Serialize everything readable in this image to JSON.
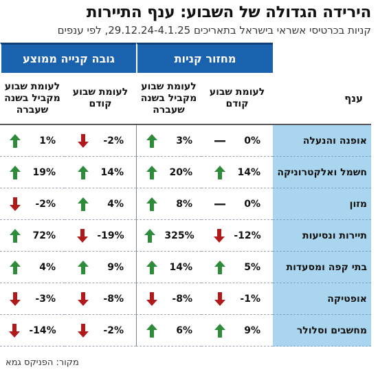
{
  "title": "הירידה הגדולה של השבוע: ענף התיירות",
  "subtitle": "קניות בכרטיסי אשראי בישראל בתאריכים 29.12.24-4.1.25, לפי ענפים",
  "groups": {
    "turnover": "מחזור קניות",
    "avg": "גובה קנייה ממוצע"
  },
  "columns": {
    "category": "ענף",
    "prev_week": "לעומת שבוע קודם",
    "last_year": "לעומת שבוע מקביל בשנה שעברה"
  },
  "colors": {
    "up": "#2e8b3a",
    "down": "#b11a1a",
    "header": "#1b62ae",
    "category_bg": "#a9d6ee"
  },
  "rows": [
    {
      "name": "אופנה והנעלה",
      "turnover_prev": "0%",
      "turnover_prev_dir": "flat",
      "turnover_year": "3%",
      "turnover_year_dir": "up",
      "avg_prev": "-2%",
      "avg_prev_dir": "down",
      "avg_year": "1%",
      "avg_year_dir": "up"
    },
    {
      "name": "חשמל ואלקטרוניקה",
      "turnover_prev": "14%",
      "turnover_prev_dir": "up",
      "turnover_year": "20%",
      "turnover_year_dir": "up",
      "avg_prev": "14%",
      "avg_prev_dir": "up",
      "avg_year": "19%",
      "avg_year_dir": "up"
    },
    {
      "name": "מזון",
      "turnover_prev": "0%",
      "turnover_prev_dir": "flat",
      "turnover_year": "8%",
      "turnover_year_dir": "up",
      "avg_prev": "4%",
      "avg_prev_dir": "up",
      "avg_year": "-2%",
      "avg_year_dir": "down"
    },
    {
      "name": "תיירות ונסיעות",
      "turnover_prev": "-12%",
      "turnover_prev_dir": "down",
      "turnover_year": "325%",
      "turnover_year_dir": "up",
      "avg_prev": "-19%",
      "avg_prev_dir": "down",
      "avg_year": "72%",
      "avg_year_dir": "up"
    },
    {
      "name": "בתי קפה ומסעדות",
      "turnover_prev": "5%",
      "turnover_prev_dir": "up",
      "turnover_year": "14%",
      "turnover_year_dir": "up",
      "avg_prev": "9%",
      "avg_prev_dir": "up",
      "avg_year": "4%",
      "avg_year_dir": "up"
    },
    {
      "name": "אופטיקה",
      "turnover_prev": "-1%",
      "turnover_prev_dir": "down",
      "turnover_year": "-8%",
      "turnover_year_dir": "down",
      "avg_prev": "-8%",
      "avg_prev_dir": "down",
      "avg_year": "-3%",
      "avg_year_dir": "down"
    },
    {
      "name": "מחשבים וסלולר",
      "turnover_prev": "9%",
      "turnover_prev_dir": "up",
      "turnover_year": "6%",
      "turnover_year_dir": "up",
      "avg_prev": "-2%",
      "avg_prev_dir": "down",
      "avg_year": "-14%",
      "avg_year_dir": "down"
    }
  ],
  "source": "מקור: הפניקס גמא"
}
